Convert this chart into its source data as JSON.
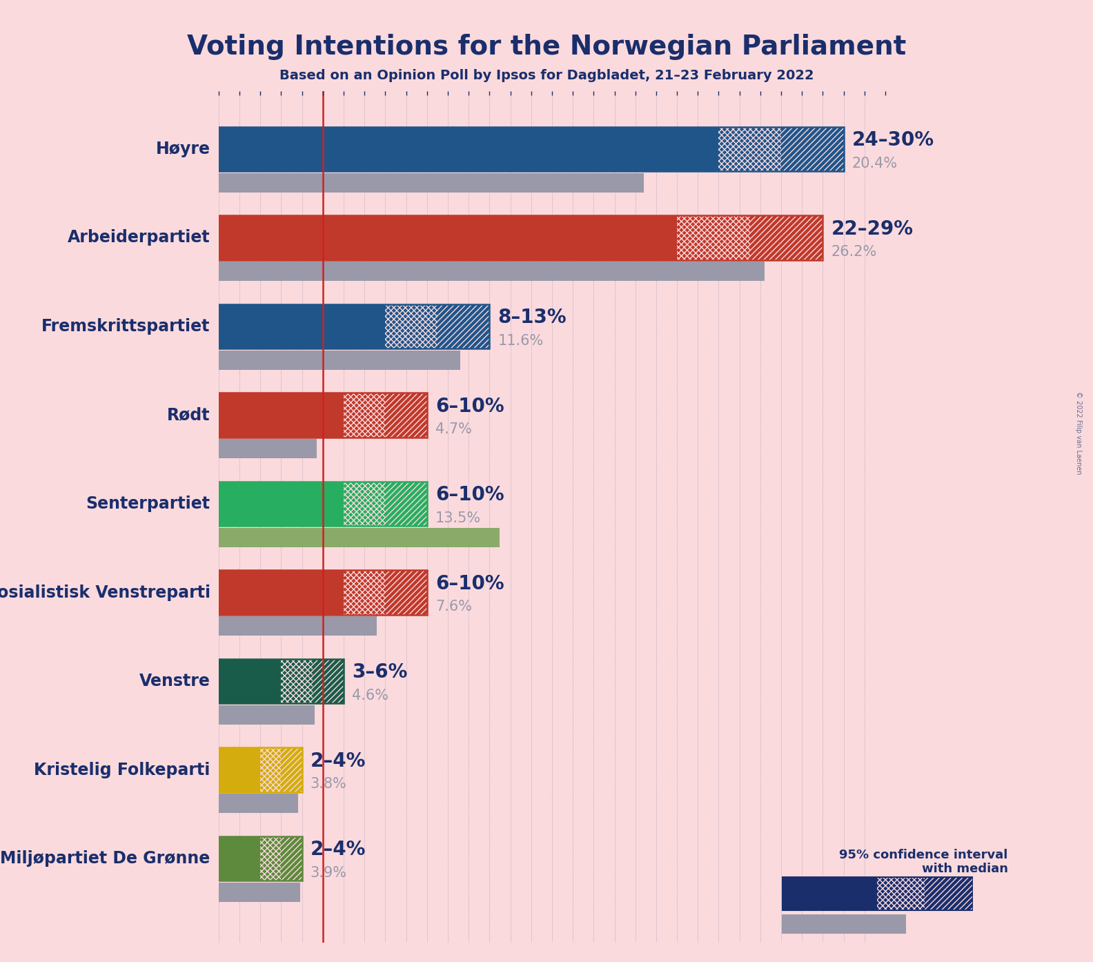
{
  "title": "Voting Intentions for the Norwegian Parliament",
  "subtitle": "Based on an Opinion Poll by Ipsos for Dagbladet, 21–23 February 2022",
  "copyright": "© 2022 Filip van Laenen",
  "background_color": "#FADADD",
  "title_color": "#1a2e6c",
  "subtitle_color": "#1a2e6c",
  "parties": [
    {
      "name": "Høyre",
      "ci_low": 24,
      "ci_high": 30,
      "median": 27,
      "last_result": 20.4,
      "color": "#20558a",
      "label": "24–30%",
      "last_label": "20.4%"
    },
    {
      "name": "Arbeiderpartiet",
      "ci_low": 22,
      "ci_high": 29,
      "median": 25.5,
      "last_result": 26.2,
      "color": "#c0392b",
      "label": "22–29%",
      "last_label": "26.2%"
    },
    {
      "name": "Fremskrittspartiet",
      "ci_low": 8,
      "ci_high": 13,
      "median": 10.5,
      "last_result": 11.6,
      "color": "#20558a",
      "label": "8–13%",
      "last_label": "11.6%"
    },
    {
      "name": "Rødt",
      "ci_low": 6,
      "ci_high": 10,
      "median": 8,
      "last_result": 4.7,
      "color": "#c0392b",
      "label": "6–10%",
      "last_label": "4.7%"
    },
    {
      "name": "Senterpartiet",
      "ci_low": 6,
      "ci_high": 10,
      "median": 8,
      "last_result": 13.5,
      "color": "#27ae60",
      "label": "6–10%",
      "last_label": "13.5%"
    },
    {
      "name": "Sosialistisk Venstreparti",
      "ci_low": 6,
      "ci_high": 10,
      "median": 8,
      "last_result": 7.6,
      "color": "#c0392b",
      "label": "6–10%",
      "last_label": "7.6%"
    },
    {
      "name": "Venstre",
      "ci_low": 3,
      "ci_high": 6,
      "median": 4.5,
      "last_result": 4.6,
      "color": "#1a5c4a",
      "label": "3–6%",
      "last_label": "4.6%"
    },
    {
      "name": "Kristelig Folkeparti",
      "ci_low": 2,
      "ci_high": 4,
      "median": 3,
      "last_result": 3.8,
      "color": "#d4ac0d",
      "label": "2–4%",
      "last_label": "3.8%"
    },
    {
      "name": "Miljøpartiet De Grønne",
      "ci_low": 2,
      "ci_high": 4,
      "median": 3,
      "last_result": 3.9,
      "color": "#5d8a3c",
      "label": "2–4%",
      "last_label": "3.9%"
    }
  ],
  "xmax": 32,
  "bar_height": 0.5,
  "last_bar_height": 0.22,
  "red_line_x": 5.0,
  "axis_color": "#1a2e6c",
  "label_color": "#1a2e6c",
  "last_color": "#9999aa",
  "last_color_senter": "#8aaa6a",
  "legend_text_color": "#1a2e6c",
  "last_result_text_color": "#9999aa",
  "party_name_fontsize": 17,
  "label_fontsize": 20,
  "last_label_fontsize": 15
}
